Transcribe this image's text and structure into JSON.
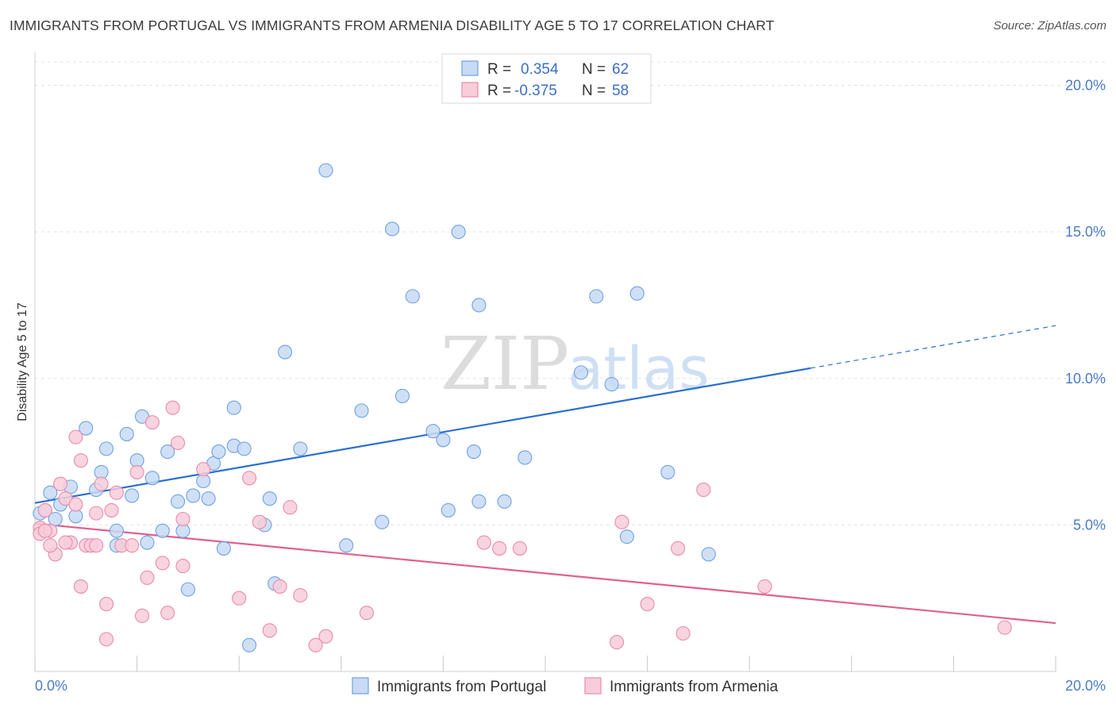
{
  "title": "IMMIGRANTS FROM PORTUGAL VS IMMIGRANTS FROM ARMENIA DISABILITY AGE 5 TO 17 CORRELATION CHART",
  "source": "Source: ZipAtlas.com",
  "watermark": {
    "zip": "ZIP",
    "atlas": "atlas"
  },
  "chart_data": {
    "type": "scatter",
    "xlabel": "",
    "ylabel": "Disability Age 5 to 17",
    "xlim": [
      0,
      20
    ],
    "ylim": [
      0,
      20.8
    ],
    "x_tick_labels": [
      "0.0%",
      "20.0%"
    ],
    "y_ticks": [
      5,
      10,
      15,
      20
    ],
    "y_tick_labels": [
      "5.0%",
      "10.0%",
      "15.0%",
      "20.0%"
    ],
    "grid": true,
    "legend_position": "top-center",
    "stats": [
      {
        "r_label": "R =",
        "r_value": "0.354",
        "n_label": "N =",
        "n_value": "62"
      },
      {
        "r_label": "R =",
        "r_value": "-0.375",
        "n_label": "N =",
        "n_value": "58"
      }
    ],
    "series": [
      {
        "name": "Immigrants from Portugal",
        "color": "#6fa1e2",
        "fill": "#c7dbf5",
        "trend": {
          "x0": 0.0,
          "y0": 5.75,
          "x1": 15.2,
          "y1": 10.35,
          "dash_x1": 20.0,
          "dash_y1": 11.8
        },
        "points": [
          [
            0.1,
            5.4
          ],
          [
            0.2,
            5.5
          ],
          [
            0.3,
            6.1
          ],
          [
            0.4,
            5.2
          ],
          [
            0.5,
            5.7
          ],
          [
            0.7,
            6.3
          ],
          [
            0.8,
            5.3
          ],
          [
            1.0,
            8.3
          ],
          [
            1.2,
            6.2
          ],
          [
            1.3,
            6.8
          ],
          [
            1.4,
            7.6
          ],
          [
            1.6,
            4.3
          ],
          [
            1.6,
            4.8
          ],
          [
            1.8,
            8.1
          ],
          [
            1.9,
            6.0
          ],
          [
            2.0,
            7.2
          ],
          [
            2.1,
            8.7
          ],
          [
            2.2,
            4.4
          ],
          [
            2.3,
            6.6
          ],
          [
            2.5,
            4.8
          ],
          [
            2.6,
            7.5
          ],
          [
            2.8,
            5.8
          ],
          [
            2.9,
            4.8
          ],
          [
            3.0,
            2.8
          ],
          [
            3.1,
            6.0
          ],
          [
            3.3,
            6.5
          ],
          [
            3.4,
            5.9
          ],
          [
            3.5,
            7.1
          ],
          [
            3.6,
            7.5
          ],
          [
            3.7,
            4.2
          ],
          [
            3.9,
            7.7
          ],
          [
            3.9,
            9.0
          ],
          [
            4.1,
            7.6
          ],
          [
            4.2,
            0.9
          ],
          [
            4.5,
            5.0
          ],
          [
            4.6,
            5.9
          ],
          [
            4.7,
            3.0
          ],
          [
            4.9,
            10.9
          ],
          [
            5.2,
            7.6
          ],
          [
            5.7,
            17.1
          ],
          [
            6.1,
            4.3
          ],
          [
            6.4,
            8.9
          ],
          [
            6.8,
            5.1
          ],
          [
            7.0,
            15.1
          ],
          [
            7.2,
            9.4
          ],
          [
            7.4,
            12.8
          ],
          [
            7.8,
            8.2
          ],
          [
            8.0,
            7.9
          ],
          [
            8.1,
            5.5
          ],
          [
            8.3,
            15.0
          ],
          [
            8.6,
            7.5
          ],
          [
            8.7,
            12.5
          ],
          [
            8.7,
            5.8
          ],
          [
            9.2,
            5.8
          ],
          [
            9.6,
            7.3
          ],
          [
            10.7,
            10.2
          ],
          [
            11.0,
            12.8
          ],
          [
            11.3,
            9.8
          ],
          [
            11.6,
            4.6
          ],
          [
            11.8,
            12.9
          ],
          [
            12.4,
            6.8
          ],
          [
            13.2,
            4.0
          ]
        ]
      },
      {
        "name": "Immigrants from Armenia",
        "color": "#ea8bab",
        "fill": "#f7cdd9",
        "trend": {
          "x0": 0.0,
          "y0": 5.05,
          "x1": 20.0,
          "y1": 1.65
        },
        "points": [
          [
            0.1,
            4.9
          ],
          [
            0.1,
            4.7
          ],
          [
            0.2,
            5.5
          ],
          [
            0.3,
            4.8
          ],
          [
            0.4,
            4.0
          ],
          [
            0.5,
            6.4
          ],
          [
            0.6,
            5.9
          ],
          [
            0.7,
            4.4
          ],
          [
            0.8,
            8.0
          ],
          [
            0.9,
            7.2
          ],
          [
            0.9,
            2.9
          ],
          [
            1.0,
            4.3
          ],
          [
            1.1,
            4.3
          ],
          [
            1.2,
            5.4
          ],
          [
            1.3,
            6.4
          ],
          [
            1.4,
            2.3
          ],
          [
            1.4,
            1.1
          ],
          [
            1.5,
            5.5
          ],
          [
            1.6,
            6.1
          ],
          [
            1.7,
            4.3
          ],
          [
            1.9,
            4.3
          ],
          [
            2.0,
            6.8
          ],
          [
            2.1,
            1.9
          ],
          [
            2.2,
            3.2
          ],
          [
            2.3,
            8.5
          ],
          [
            2.5,
            3.7
          ],
          [
            2.6,
            2.0
          ],
          [
            2.7,
            9.0
          ],
          [
            2.8,
            7.8
          ],
          [
            2.9,
            5.2
          ],
          [
            2.9,
            3.6
          ],
          [
            3.3,
            6.9
          ],
          [
            4.0,
            2.5
          ],
          [
            4.2,
            6.6
          ],
          [
            4.4,
            5.1
          ],
          [
            4.6,
            1.4
          ],
          [
            4.8,
            2.9
          ],
          [
            5.0,
            5.6
          ],
          [
            5.2,
            2.6
          ],
          [
            5.5,
            0.9
          ],
          [
            5.7,
            1.2
          ],
          [
            6.5,
            2.0
          ],
          [
            8.8,
            4.4
          ],
          [
            9.1,
            4.2
          ],
          [
            9.5,
            4.2
          ],
          [
            11.4,
            1.0
          ],
          [
            11.5,
            5.1
          ],
          [
            12.0,
            2.3
          ],
          [
            12.6,
            4.2
          ],
          [
            12.7,
            1.3
          ],
          [
            13.1,
            6.2
          ],
          [
            14.3,
            2.9
          ],
          [
            19.0,
            1.5
          ],
          [
            0.3,
            4.3
          ],
          [
            0.6,
            4.4
          ],
          [
            0.8,
            5.7
          ],
          [
            1.2,
            4.3
          ],
          [
            0.2,
            4.8
          ]
        ]
      }
    ]
  }
}
